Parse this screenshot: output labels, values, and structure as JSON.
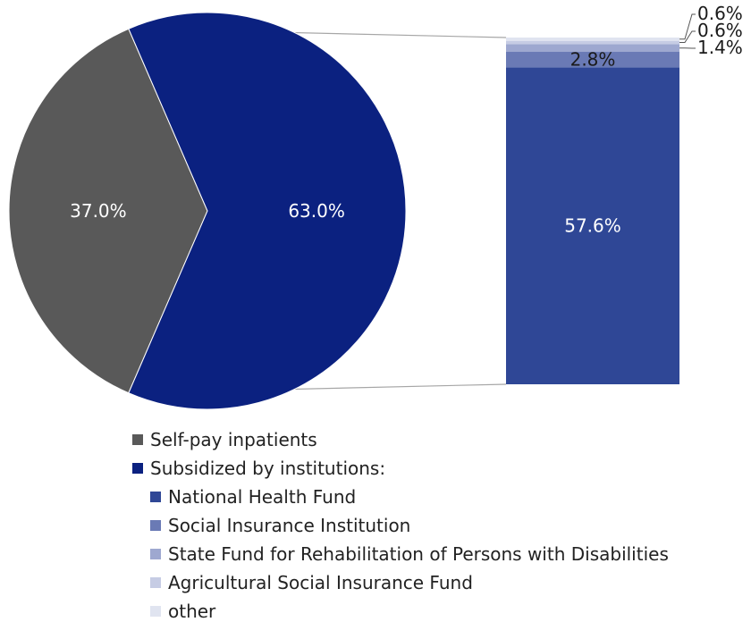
{
  "chart_data": {
    "type": "pie",
    "slices": [
      {
        "label": "Self-pay inpatients",
        "value": 37.0,
        "value_label": "37.0%",
        "color": "#595959"
      },
      {
        "label": "Subsidized by institutions:",
        "value": 63.0,
        "value_label": "63.0%",
        "color": "#0b2180"
      }
    ],
    "breakdown": {
      "type": "stacked-bar",
      "of": "Subsidized by institutions:",
      "segments": [
        {
          "label": "National Health Fund",
          "value": 57.6,
          "value_label": "57.6%",
          "color": "#2f4796"
        },
        {
          "label": "Social Insurance Institution",
          "value": 2.8,
          "value_label": "2.8%",
          "color": "#6a7ab5"
        },
        {
          "label": "State Fund for Rehabilitation of Persons with Disabilities",
          "value": 1.4,
          "value_label": "1.4%",
          "color": "#9ea8d0"
        },
        {
          "label": "Agricultural Social Insurance Fund",
          "value": 0.6,
          "value_label": "0.6%",
          "color": "#c6cce4"
        },
        {
          "label": "other",
          "value": 0.6,
          "value_label": "0.6%",
          "color": "#e0e4f0"
        }
      ]
    },
    "legend": {
      "position": "bottom",
      "items": [
        {
          "label": "Self-pay inpatients",
          "color": "#595959"
        },
        {
          "label": "Subsidized by institutions:",
          "color": "#0b2180"
        },
        {
          "label": "National Health Fund",
          "color": "#2f4796"
        },
        {
          "label": "Social Insurance Institution",
          "color": "#6a7ab5"
        },
        {
          "label": "State Fund for Rehabilitation of Persons with Disabilities",
          "color": "#9ea8d0"
        },
        {
          "label": "Agricultural Social Insurance Fund",
          "color": "#c6cce4"
        },
        {
          "label": "other",
          "color": "#e0e4f0"
        }
      ]
    }
  }
}
